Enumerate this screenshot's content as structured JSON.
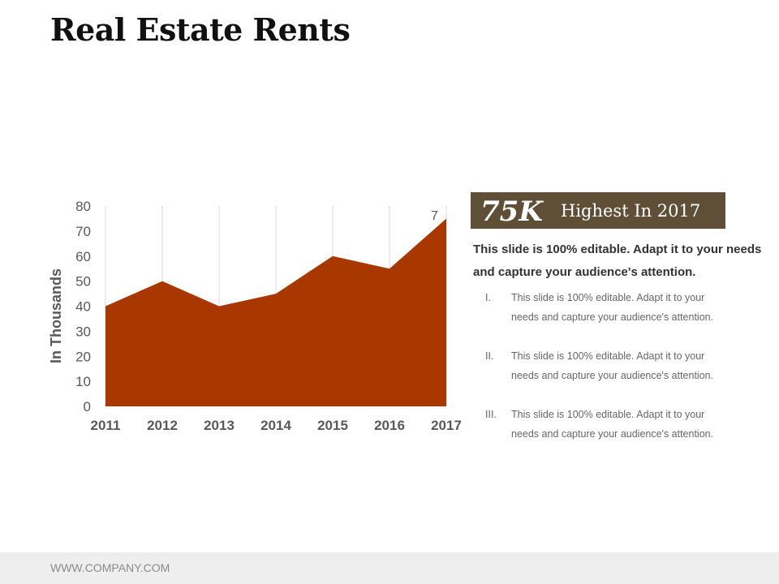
{
  "slide": {
    "title": "Real Estate Rents",
    "footer": "WWW.COMPANY.COM"
  },
  "stat": {
    "value": "75K",
    "label": "Highest In 2017"
  },
  "text": {
    "headline": "This slide is 100% editable. Adapt it to your needs and capture your audience's attention.",
    "points": [
      {
        "num": "I.",
        "text": "This slide is 100% editable. Adapt it to your needs and capture your audience's attention."
      },
      {
        "num": "II.",
        "text": "This slide is 100% editable. Adapt it to your needs and capture your audience's attention."
      },
      {
        "num": "III.",
        "text": "This slide is 100% editable. Adapt it to your needs and capture your audience's attention."
      }
    ]
  },
  "colors": {
    "area": "#a83800",
    "stat_box": "#5f4f36"
  },
  "chart_data": {
    "type": "area",
    "categories": [
      "2011",
      "2012",
      "2013",
      "2014",
      "2015",
      "2016",
      "2017"
    ],
    "series": [
      {
        "values": [
          40,
          50,
          40,
          45,
          60,
          55,
          75
        ]
      }
    ],
    "ylabel": "In Thousands",
    "ylim": [
      0,
      80
    ],
    "yticks": [
      0,
      10,
      20,
      30,
      40,
      50,
      60,
      70,
      80
    ],
    "grid": "vertical",
    "data_label": "7"
  }
}
